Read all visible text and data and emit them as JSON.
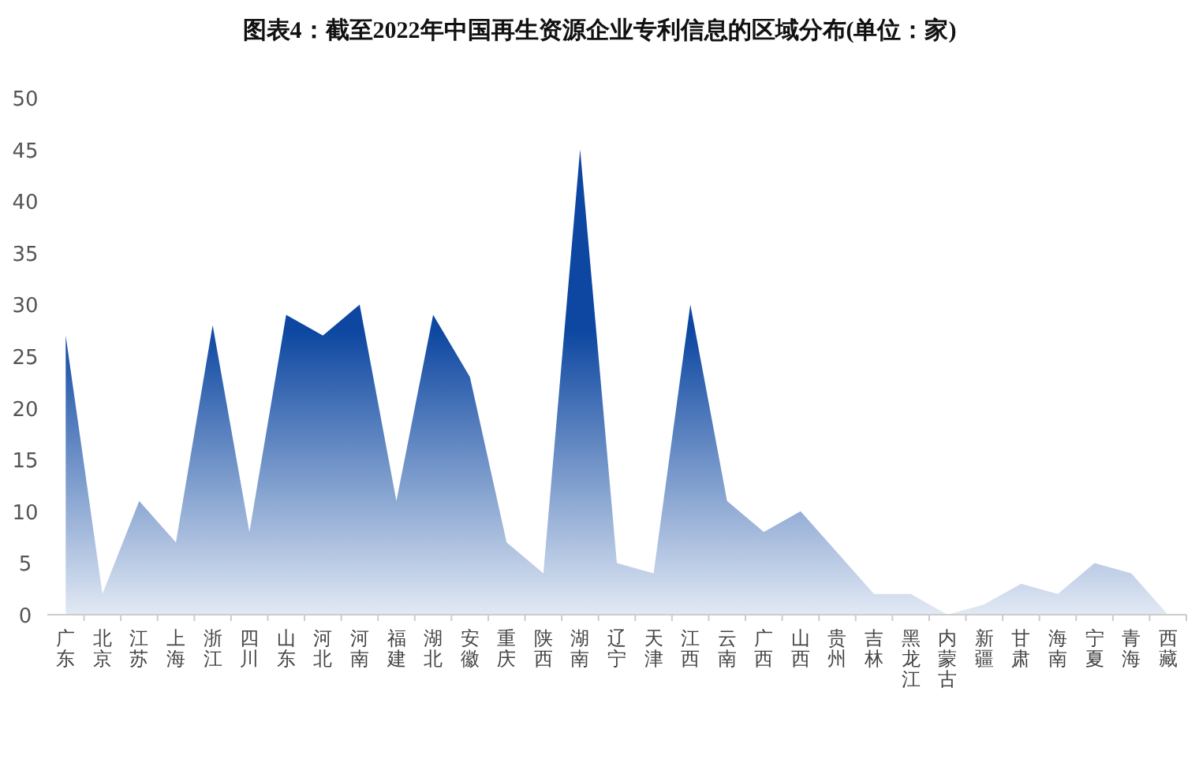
{
  "chart_data": {
    "type": "area",
    "title": "图表4：截至2022年中国再生资源企业专利信息的区域分布(单位：家)",
    "categories": [
      "广东",
      "北京",
      "江苏",
      "上海",
      "浙江",
      "四川",
      "山东",
      "河北",
      "河南",
      "福建",
      "湖北",
      "安徽",
      "重庆",
      "陕西",
      "湖南",
      "辽宁",
      "天津",
      "江西",
      "云南",
      "广西",
      "山西",
      "贵州",
      "吉林",
      "黑龙江",
      "内蒙古",
      "新疆",
      "甘肃",
      "海南",
      "宁夏",
      "青海",
      "西藏"
    ],
    "series": [
      {
        "color": "#0d47a1",
        "values": [
          27,
          2,
          11,
          7,
          28,
          8,
          29,
          27,
          30,
          11,
          29,
          23,
          7,
          4,
          45,
          5,
          4,
          30,
          11,
          8,
          10,
          6,
          2,
          2,
          0,
          1,
          3,
          2,
          5,
          4,
          0
        ]
      }
    ],
    "ylim": [
      0,
      50
    ],
    "yticks": [
      0,
      5,
      10,
      15,
      20,
      25,
      30,
      35,
      40,
      45,
      50
    ],
    "grid": false
  }
}
